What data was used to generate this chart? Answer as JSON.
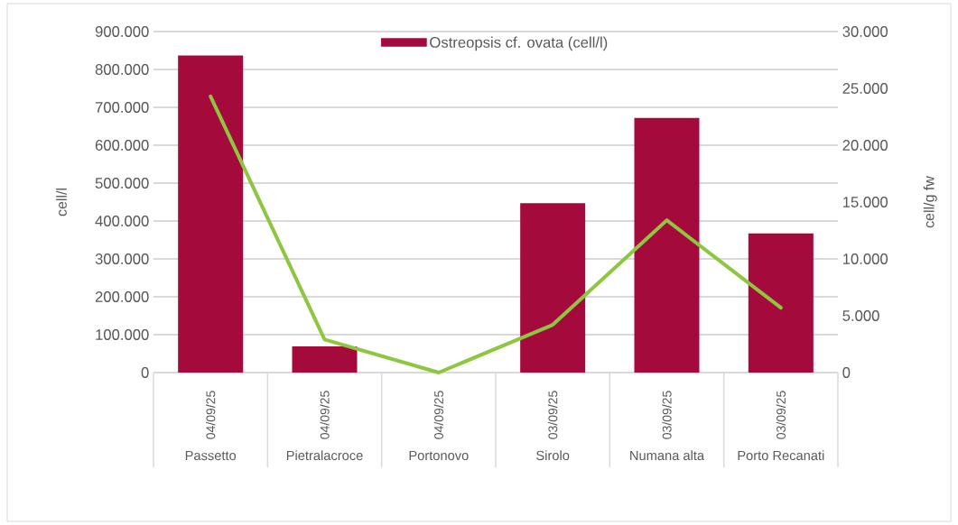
{
  "chart_data": {
    "type": "bar",
    "ylabel": "cell/l",
    "y2label": "cell/g fw",
    "categories": [
      "Passetto",
      "Pietralacroce",
      "Portonovo",
      "Sirolo",
      "Numana alta",
      "Porto Recanati"
    ],
    "annotations": [
      "04/09/25",
      "04/09/25",
      "04/09/25",
      "03/09/25",
      "03/09/25",
      "03/09/25"
    ],
    "series": [
      {
        "name": "Ostreopsis cf. ovata (cell/l)",
        "color": "#a50a3c",
        "values": [
          837000,
          69000,
          0,
          447000,
          672000,
          367000
        ]
      },
      {
        "type": "line",
        "axis": "y2",
        "color": "#8dc63f",
        "line_style": "solid",
        "values": [
          24300,
          2900,
          0,
          4200,
          13400,
          5700
        ]
      }
    ],
    "ylim": [
      0,
      900000
    ],
    "yticks": [
      0,
      {
        "value": 100000,
        "label": "100.000"
      },
      {
        "value": 200000,
        "label": "200.000"
      },
      {
        "value": 300000,
        "label": "300.000"
      },
      {
        "value": 400000,
        "label": "400.000"
      },
      {
        "value": 500000,
        "label": "500.000"
      },
      {
        "value": 600000,
        "label": "600.000"
      },
      {
        "value": 700000,
        "label": "700.000"
      },
      {
        "value": 800000,
        "label": "800.000"
      },
      {
        "value": 900000,
        "label": "900.000"
      }
    ],
    "y2lim": [
      0,
      30000
    ],
    "y2ticks": [
      0,
      {
        "value": 5000,
        "label": "5.000"
      },
      {
        "value": 10000,
        "label": "10.000"
      },
      {
        "value": 15000,
        "label": "15.000"
      },
      {
        "value": 20000,
        "label": "20.000"
      },
      {
        "value": 25000,
        "label": "25.000"
      },
      {
        "value": 30000,
        "label": "30.000"
      }
    ],
    "grid": "y",
    "legend": "top"
  }
}
